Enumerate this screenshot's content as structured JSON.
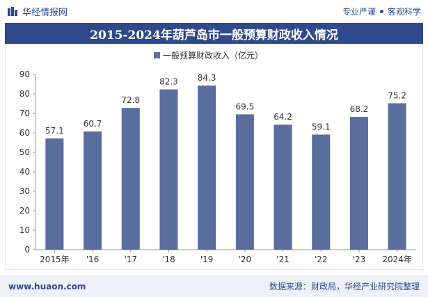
{
  "header": {
    "brand": "华经情报网",
    "tagline_left": "专业严谨",
    "tagline_right": "客观科学"
  },
  "title": "2015-2024年葫芦岛市一般预算财政收入情况",
  "footer": {
    "url": "www.huaon.com",
    "source": "数据来源：财政局，华经产业研究院整理"
  },
  "colors": {
    "bar": "#5a6d9c",
    "title_bg": "#2e4a8c",
    "brand": "#2b4b8f"
  },
  "chart_data": {
    "type": "bar",
    "title": "2015-2024年葫芦岛市一般预算财政收入情况",
    "categories": [
      "2015年",
      "'16",
      "'17",
      "'18",
      "'19",
      "'20",
      "'21",
      "'22",
      "'23",
      "2024年"
    ],
    "series": [
      {
        "name": "一般预算财政收入（亿元）",
        "values": [
          57.1,
          60.7,
          72.8,
          82.3,
          84.3,
          69.5,
          64.2,
          59.1,
          68.2,
          75.2
        ]
      }
    ],
    "ylim": [
      0,
      90
    ],
    "yticks": [
      0,
      10,
      20,
      30,
      40,
      50,
      60,
      70,
      80,
      90
    ],
    "xlabel": "",
    "ylabel": "",
    "grid": false,
    "legend": "top-center",
    "data_labels": true
  }
}
